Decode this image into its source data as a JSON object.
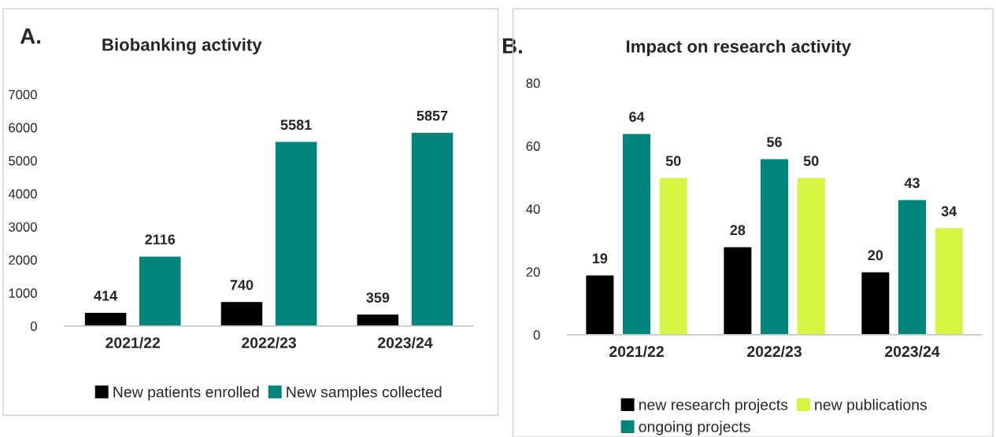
{
  "chart_data": [
    {
      "type": "bar",
      "title": "Biobanking activity",
      "annotations": [
        "A."
      ],
      "categories": [
        "2021/22",
        "2022/23",
        "2023/24"
      ],
      "series": [
        {
          "name": "New patients enrolled",
          "color": "#000000",
          "values": [
            414,
            740,
            359
          ]
        },
        {
          "name": "New samples collected",
          "color": "#00857a",
          "values": [
            2116,
            5581,
            5857
          ]
        }
      ],
      "ylim": [
        0,
        7000
      ],
      "yticks": [
        0,
        1000,
        2000,
        3000,
        4000,
        5000,
        6000,
        7000
      ],
      "data_labels": true,
      "grid": false,
      "legend": "bottom"
    },
    {
      "type": "bar",
      "title": "Impact on research activity",
      "annotations": [
        "B."
      ],
      "categories": [
        "2021/22",
        "2022/23",
        "2023/24"
      ],
      "series": [
        {
          "name": "new research projects",
          "color": "#000000",
          "values": [
            19,
            28,
            20
          ]
        },
        {
          "name": "ongoing projects",
          "color": "#00857a",
          "values": [
            64,
            56,
            43
          ]
        },
        {
          "name": "new publications",
          "color": "#d4f542",
          "values": [
            50,
            50,
            34
          ]
        }
      ],
      "ylim": [
        0,
        80
      ],
      "yticks": [
        0,
        20,
        40,
        60,
        80
      ],
      "data_labels": true,
      "grid": false,
      "legend": "bottom"
    }
  ]
}
